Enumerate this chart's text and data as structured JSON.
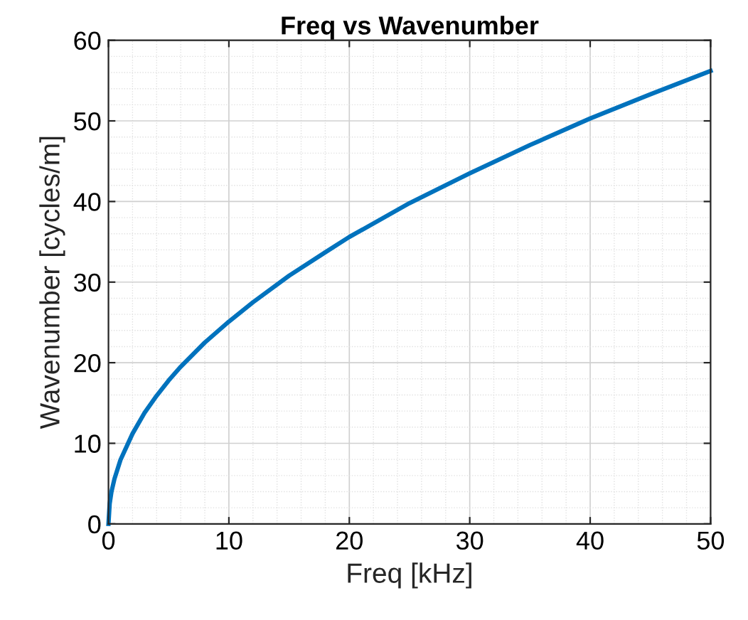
{
  "chart_data": {
    "type": "line",
    "title": "Freq vs Wavenumber",
    "xlabel": "Freq [kHz]",
    "ylabel": "Wavenumber [cycles/m]",
    "x": [
      0,
      0.1,
      0.25,
      0.5,
      1,
      2,
      3,
      4,
      5,
      6,
      8,
      10,
      12,
      15,
      18,
      20,
      25,
      30,
      35,
      40,
      45,
      50
    ],
    "series": [
      {
        "color": "#0072bd",
        "values": [
          0,
          2.5,
          4.0,
          5.6,
          7.95,
          11.2,
          13.8,
          15.9,
          17.8,
          19.5,
          22.5,
          25.1,
          27.5,
          30.8,
          33.7,
          35.6,
          39.8,
          43.5,
          47.0,
          50.3,
          53.3,
          56.2
        ]
      }
    ],
    "xlim": [
      0,
      50
    ],
    "xticks": [
      0,
      10,
      20,
      30,
      40,
      50
    ],
    "ylim": [
      0,
      60
    ],
    "yticks": [
      0,
      10,
      20,
      30,
      40,
      50,
      60
    ],
    "grid": true,
    "marker": "none",
    "line_style": "solid"
  }
}
